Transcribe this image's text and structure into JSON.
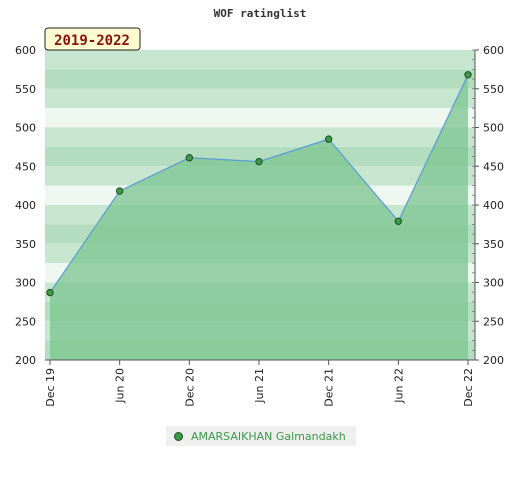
{
  "chart_data": {
    "type": "area",
    "title": "WOF ratinglist",
    "badge": "2019-2022",
    "x": [
      "Dec 19",
      "Jun 20",
      "Dec 20",
      "Jun 21",
      "Dec 21",
      "Jun 22",
      "Dec 22"
    ],
    "x_tick_labels": [
      "Dec 19",
      "Jun 20",
      "Dec 20",
      "Jun 21",
      "Dec 21",
      "Jun 22",
      "Dec 22"
    ],
    "y_ticks": [
      200,
      250,
      300,
      350,
      400,
      450,
      500,
      550,
      600
    ],
    "ylim": [
      200,
      600
    ],
    "grid": true,
    "legend_position": "bottom",
    "series": [
      {
        "name": "AMARSAIKHAN Galmandakh",
        "values": [
          287,
          418,
          461,
          456,
          485,
          379,
          568
        ]
      }
    ]
  },
  "colors": {
    "area_fill": "#7bc48f",
    "line": "#5b9bd5",
    "marker_fill": "#3a9a4a",
    "marker_stroke": "#1f4f1f",
    "legend_text": "#3a9a4a",
    "badge_bg": "#fffbd0"
  }
}
